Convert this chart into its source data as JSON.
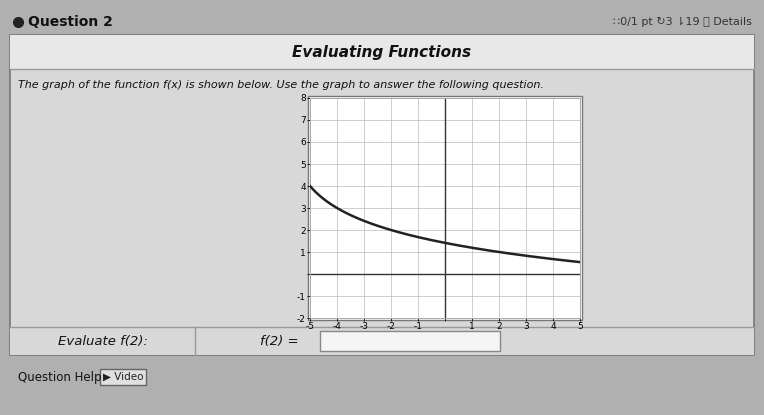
{
  "title": "Evaluating Functions",
  "subtitle": "The graph of the function f(x) is shown below. Use the graph to answer the following question.",
  "question_label": "Evaluate f(2):",
  "answer_label": "f(2) =",
  "x_min": -5,
  "x_max": 5,
  "y_min": -2,
  "y_max": 8,
  "curve_color": "#222222",
  "grid_color": "#bbbbbb",
  "outer_bg": "#b0b0b0",
  "box_bg": "#d8d8d8",
  "header_bg": "#e8e8e8",
  "plot_bg": "#ffffff",
  "question2_text": "Question 2",
  "badge_text": "∷0/1 pt ↻3 ⇂19 ⓘ Details",
  "question_help_text": "Question Help:",
  "video_text": "▶ Video",
  "curve_formula_a": 4,
  "curve_formula_shift": 6
}
